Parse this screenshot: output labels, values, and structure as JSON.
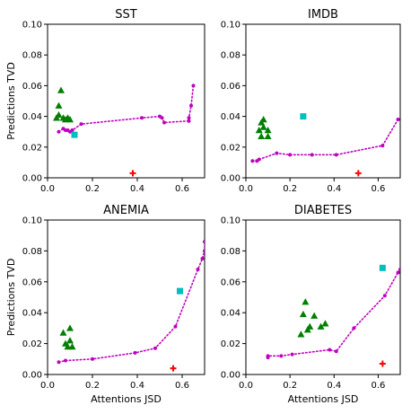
{
  "chart_data": [
    {
      "type": "scatter",
      "title": "SST",
      "xlabel": "",
      "ylabel": "Predictions TVD",
      "xlim": [
        0,
        0.7
      ],
      "ylim": [
        0,
        0.1
      ],
      "xticks": [
        "0.0",
        "0.2",
        "0.4",
        "0.6"
      ],
      "yticks": [
        "0.00",
        "0.02",
        "0.04",
        "0.06",
        "0.08",
        "0.10"
      ],
      "grid": false,
      "curve": {
        "color": "#bf00bf",
        "points": [
          [
            0.05,
            0.03
          ],
          [
            0.07,
            0.032
          ],
          [
            0.08,
            0.031
          ],
          [
            0.09,
            0.031
          ],
          [
            0.1,
            0.03
          ],
          [
            0.11,
            0.031
          ],
          [
            0.15,
            0.035
          ],
          [
            0.42,
            0.039
          ],
          [
            0.5,
            0.04
          ],
          [
            0.51,
            0.039
          ],
          [
            0.52,
            0.036
          ],
          [
            0.63,
            0.037
          ],
          [
            0.63,
            0.039
          ],
          [
            0.64,
            0.047
          ],
          [
            0.65,
            0.06
          ]
        ]
      },
      "triangles": {
        "color": "#007f00",
        "points": [
          [
            0.04,
            0.039
          ],
          [
            0.05,
            0.047
          ],
          [
            0.05,
            0.041
          ],
          [
            0.06,
            0.057
          ],
          [
            0.07,
            0.039
          ],
          [
            0.08,
            0.038
          ],
          [
            0.09,
            0.039
          ],
          [
            0.1,
            0.038
          ]
        ]
      },
      "square": {
        "color": "#00bfbf",
        "points": [
          [
            0.12,
            0.028
          ]
        ]
      },
      "plus": {
        "color": "#ff0000",
        "points": [
          [
            0.38,
            0.003
          ]
        ]
      }
    },
    {
      "type": "scatter",
      "title": "IMDB",
      "xlabel": "",
      "ylabel": "",
      "xlim": [
        0,
        0.7
      ],
      "ylim": [
        0,
        0.1
      ],
      "xticks": [
        "0.0",
        "0.2",
        "0.4",
        "0.6"
      ],
      "yticks": [
        "0.00",
        "0.02",
        "0.04",
        "0.06",
        "0.08",
        "0.10"
      ],
      "grid": false,
      "curve": {
        "color": "#bf00bf",
        "points": [
          [
            0.03,
            0.011
          ],
          [
            0.05,
            0.011
          ],
          [
            0.06,
            0.012
          ],
          [
            0.14,
            0.016
          ],
          [
            0.2,
            0.015
          ],
          [
            0.3,
            0.015
          ],
          [
            0.41,
            0.015
          ],
          [
            0.62,
            0.021
          ],
          [
            0.69,
            0.038
          ]
        ]
      },
      "triangles": {
        "color": "#007f00",
        "points": [
          [
            0.06,
            0.031
          ],
          [
            0.07,
            0.027
          ],
          [
            0.07,
            0.036
          ],
          [
            0.08,
            0.038
          ],
          [
            0.08,
            0.033
          ],
          [
            0.1,
            0.031
          ],
          [
            0.1,
            0.027
          ]
        ]
      },
      "square": {
        "color": "#00bfbf",
        "points": [
          [
            0.26,
            0.04
          ]
        ]
      },
      "plus": {
        "color": "#ff0000",
        "points": [
          [
            0.51,
            0.003
          ]
        ]
      }
    },
    {
      "type": "scatter",
      "title": "ANEMIA",
      "xlabel": "Attentions JSD",
      "ylabel": "Predictions TVD",
      "xlim": [
        0,
        0.7
      ],
      "ylim": [
        0,
        0.1
      ],
      "xticks": [
        "0.0",
        "0.2",
        "0.4",
        "0.6"
      ],
      "yticks": [
        "0.00",
        "0.02",
        "0.04",
        "0.06",
        "0.08",
        "0.10"
      ],
      "grid": false,
      "curve": {
        "color": "#bf00bf",
        "points": [
          [
            0.05,
            0.008
          ],
          [
            0.08,
            0.009
          ],
          [
            0.2,
            0.01
          ],
          [
            0.39,
            0.014
          ],
          [
            0.48,
            0.017
          ],
          [
            0.57,
            0.031
          ],
          [
            0.67,
            0.068
          ],
          [
            0.69,
            0.075
          ],
          [
            0.7,
            0.08
          ],
          [
            0.7,
            0.086
          ]
        ]
      },
      "triangles": {
        "color": "#007f00",
        "points": [
          [
            0.07,
            0.027
          ],
          [
            0.08,
            0.02
          ],
          [
            0.09,
            0.018
          ],
          [
            0.1,
            0.03
          ],
          [
            0.1,
            0.022
          ],
          [
            0.11,
            0.018
          ]
        ]
      },
      "square": {
        "color": "#00bfbf",
        "points": [
          [
            0.59,
            0.054
          ]
        ]
      },
      "plus": {
        "color": "#ff0000",
        "points": [
          [
            0.56,
            0.004
          ]
        ]
      }
    },
    {
      "type": "scatter",
      "title": "DIABETES",
      "xlabel": "Attentions JSD",
      "ylabel": "",
      "xlim": [
        0,
        0.7
      ],
      "ylim": [
        0,
        0.1
      ],
      "xticks": [
        "0.0",
        "0.2",
        "0.4",
        "0.6"
      ],
      "yticks": [
        "0.00",
        "0.02",
        "0.04",
        "0.06",
        "0.08",
        "0.10"
      ],
      "grid": false,
      "curve": {
        "color": "#bf00bf",
        "points": [
          [
            0.1,
            0.011
          ],
          [
            0.1,
            0.012
          ],
          [
            0.16,
            0.012
          ],
          [
            0.21,
            0.013
          ],
          [
            0.38,
            0.016
          ],
          [
            0.41,
            0.015
          ],
          [
            0.49,
            0.03
          ],
          [
            0.63,
            0.051
          ],
          [
            0.69,
            0.066
          ],
          [
            0.7,
            0.068
          ]
        ]
      },
      "triangles": {
        "color": "#007f00",
        "points": [
          [
            0.25,
            0.026
          ],
          [
            0.26,
            0.039
          ],
          [
            0.27,
            0.047
          ],
          [
            0.28,
            0.029
          ],
          [
            0.29,
            0.031
          ],
          [
            0.31,
            0.038
          ],
          [
            0.34,
            0.031
          ],
          [
            0.36,
            0.033
          ]
        ]
      },
      "square": {
        "color": "#00bfbf",
        "points": [
          [
            0.62,
            0.069
          ]
        ]
      },
      "plus": {
        "color": "#ff0000",
        "points": [
          [
            0.62,
            0.007
          ]
        ]
      }
    }
  ]
}
